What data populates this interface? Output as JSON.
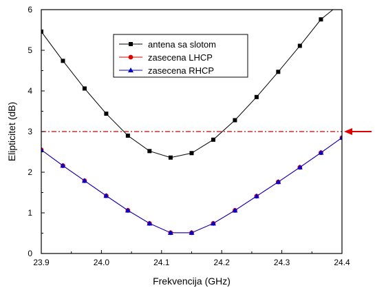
{
  "chart_data": {
    "type": "line",
    "xlabel": "Frekvencija (GHz)",
    "ylabel": "Elipticitet (dB)",
    "xlim": [
      23.9,
      24.4
    ],
    "ylim": [
      0,
      6
    ],
    "xticks": [
      23.9,
      24.0,
      24.1,
      24.2,
      24.3,
      24.4
    ],
    "xtick_labels": [
      "23.9",
      "24.0",
      "24.1",
      "24.2",
      "24.3",
      "24.4"
    ],
    "yticks": [
      0,
      1,
      2,
      3,
      4,
      5,
      6
    ],
    "ytick_labels": [
      "0",
      "1",
      "2",
      "3",
      "4",
      "5",
      "6"
    ],
    "legend_position": "top-center",
    "grid": false,
    "series": [
      {
        "name": "antena sa slotom",
        "color": "#000000",
        "marker": "square",
        "x": [
          23.9,
          23.936,
          23.972,
          24.008,
          24.044,
          24.08,
          24.115,
          24.15,
          24.186,
          24.222,
          24.258,
          24.294,
          24.33,
          24.365,
          24.385
        ],
        "y": [
          5.46,
          4.74,
          4.06,
          3.44,
          2.9,
          2.52,
          2.36,
          2.47,
          2.8,
          3.28,
          3.85,
          4.47,
          5.11,
          5.76,
          6.0
        ]
      },
      {
        "name": "zasecena LHCP",
        "color": "#e00000",
        "marker": "circle",
        "x": [
          23.9,
          23.936,
          23.972,
          24.008,
          24.044,
          24.08,
          24.115,
          24.15,
          24.186,
          24.222,
          24.258,
          24.294,
          24.33,
          24.365,
          24.4
        ],
        "y": [
          2.55,
          2.16,
          1.79,
          1.42,
          1.06,
          0.74,
          0.51,
          0.51,
          0.74,
          1.06,
          1.41,
          1.76,
          2.12,
          2.48,
          2.85
        ]
      },
      {
        "name": "zasecena RHCP",
        "color": "#0000cc",
        "marker": "triangle",
        "x": [
          23.9,
          23.936,
          23.972,
          24.008,
          24.044,
          24.08,
          24.115,
          24.15,
          24.186,
          24.222,
          24.258,
          24.294,
          24.33,
          24.365,
          24.4
        ],
        "y": [
          2.55,
          2.16,
          1.79,
          1.42,
          1.06,
          0.74,
          0.51,
          0.51,
          0.74,
          1.06,
          1.41,
          1.76,
          2.12,
          2.48,
          2.85
        ]
      }
    ],
    "reference_line": {
      "y": 3,
      "color": "#cc0000",
      "style": "dash-dot"
    },
    "arrow": {
      "y": 3,
      "color": "#e00000",
      "direction": "left"
    }
  }
}
